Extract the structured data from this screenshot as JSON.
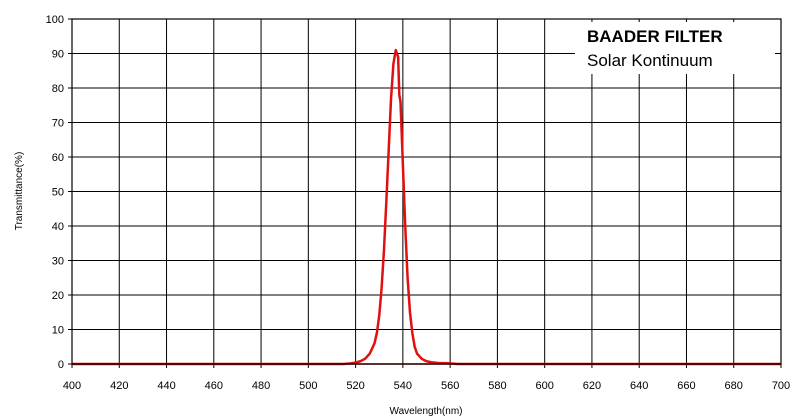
{
  "chart_data": {
    "type": "line",
    "title": "BAADER FILTER",
    "subtitle": "Solar Kontinuum",
    "xlabel": "Wavelength(nm)",
    "ylabel": "Transmittance(%)",
    "xlim": [
      400,
      700
    ],
    "ylim": [
      0,
      100
    ],
    "x_ticks": [
      400,
      420,
      440,
      460,
      480,
      500,
      520,
      540,
      560,
      580,
      600,
      620,
      640,
      660,
      680,
      700
    ],
    "y_ticks": [
      0,
      10,
      20,
      30,
      40,
      50,
      60,
      70,
      80,
      90,
      100
    ],
    "grid": true,
    "legend_position": "top-right",
    "series": [
      {
        "color": "#e01010",
        "x": [
          400,
          515,
          518,
          520,
          522,
          524,
          526,
          528,
          529,
          530,
          531,
          532,
          533,
          534,
          535,
          536,
          537,
          538,
          538.5,
          539,
          540,
          541,
          542,
          543,
          544,
          545,
          546,
          548,
          550,
          552,
          555,
          560,
          563,
          580,
          700
        ],
        "y": [
          0,
          0,
          0.2,
          0.4,
          0.8,
          1.5,
          3,
          6,
          9,
          14,
          22,
          33,
          47,
          62,
          77,
          87,
          91,
          89,
          78,
          76,
          58,
          40,
          25,
          15,
          9,
          5,
          3,
          1.5,
          0.8,
          0.5,
          0.3,
          0.2,
          0,
          0,
          0
        ]
      }
    ]
  }
}
